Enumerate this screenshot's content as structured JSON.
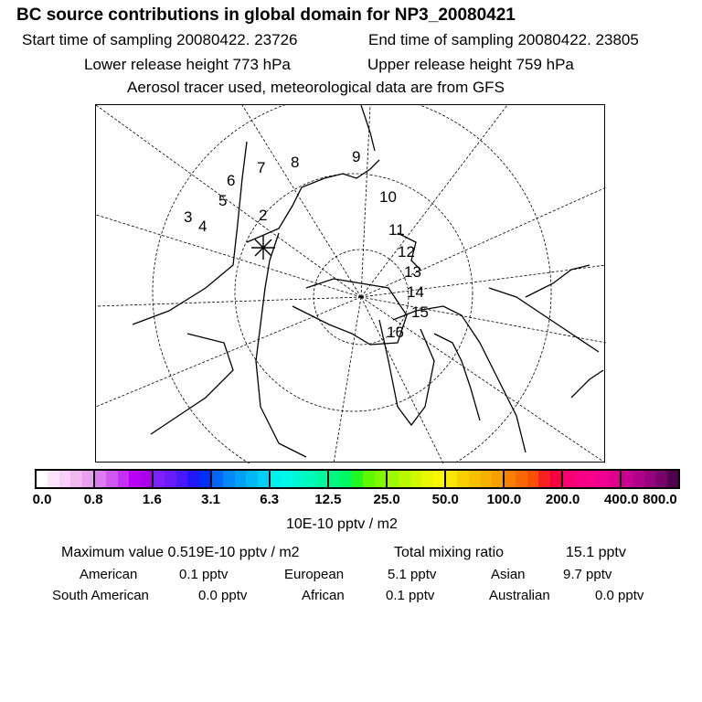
{
  "header": {
    "title": "BC  source contributions in global domain for NP3_20080421",
    "start_label": "Start time of sampling 20080422. 23726",
    "end_label": "End time of sampling 20080422. 23805",
    "lower_label": "Lower release height  773 hPa",
    "upper_label": "Upper release height  759 hPa",
    "info": "Aerosol tracer used, meteorological data are from GFS"
  },
  "map": {
    "trajectory_labels": [
      "2",
      "3",
      "4",
      "5",
      "6",
      "7",
      "8",
      "9",
      "10",
      "11",
      "12",
      "13",
      "14",
      "15",
      "16"
    ],
    "release_marker": "star"
  },
  "colorbar": {
    "ticks": [
      "0.0",
      "0.8",
      "1.6",
      "3.1",
      "6.3",
      "12.5",
      "25.0",
      "50.0",
      "100.0",
      "200.0",
      "400.0",
      "800.0"
    ],
    "unit": "10E-10 pptv / m2",
    "colors": [
      [
        "#ffffff",
        "#fbe6fb",
        "#f6d0f6",
        "#f0b8f0",
        "#e9a0ee"
      ],
      [
        "#dc7cf0",
        "#d058f0",
        "#c430f4",
        "#b800f8",
        "#a800e8"
      ],
      [
        "#8020f8",
        "#6a1cf8",
        "#4818f8",
        "#2018f8",
        "#0030f8"
      ],
      [
        "#0068f8",
        "#0088f8",
        "#00a0f8",
        "#00b8f8",
        "#00d0f8"
      ],
      [
        "#00f0f0",
        "#00f8e8",
        "#00f8d0",
        "#00f8b8",
        "#00f8a0"
      ],
      [
        "#00f880",
        "#00f860",
        "#20f820",
        "#60f800",
        "#80f800"
      ],
      [
        "#a0f800",
        "#b8f800",
        "#d0f800",
        "#e8f800",
        "#f8f800"
      ],
      [
        "#f8e800",
        "#f8d000",
        "#f8c000",
        "#f8b000",
        "#f8a000"
      ],
      [
        "#f88000",
        "#f86800",
        "#f85000",
        "#f82020",
        "#f80040"
      ],
      [
        "#f80070",
        "#f80080",
        "#f80088",
        "#f00090",
        "#e00090"
      ],
      [
        "#c80090",
        "#b00088",
        "#980080",
        "#780068",
        "#500050"
      ]
    ]
  },
  "summary": {
    "max_label": "Maximum value  0.519E-10 pptv / m2",
    "total_label": "Total mixing ratio",
    "total_value": "15.1 pptv",
    "regions": [
      {
        "name": "American",
        "value": "0.1 pptv"
      },
      {
        "name": "European",
        "value": "5.1 pptv"
      },
      {
        "name": "Asian",
        "value": "9.7 pptv"
      },
      {
        "name": "South American",
        "value": "0.0 pptv"
      },
      {
        "name": "African",
        "value": "0.1 pptv"
      },
      {
        "name": "Australian",
        "value": "0.0 pptv"
      }
    ]
  }
}
